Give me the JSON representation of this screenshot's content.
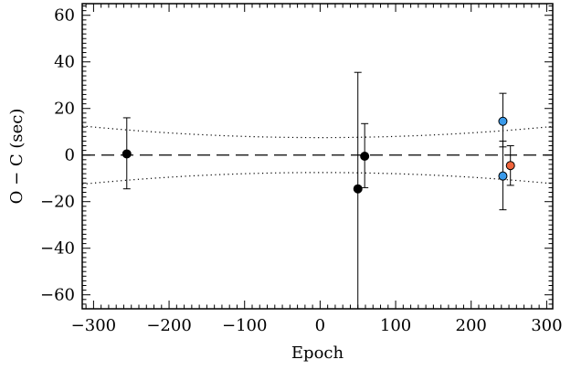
{
  "chart_data": {
    "type": "scatter",
    "xlabel": "Epoch",
    "ylabel": "O − C (sec)",
    "xlim": [
      -315,
      308
    ],
    "ylim": [
      -66,
      65
    ],
    "x_ticks": [
      -300,
      -200,
      -100,
      0,
      100,
      200,
      300
    ],
    "x_tick_labels": [
      "−300",
      "−200",
      "−100",
      "0",
      "100",
      "200",
      "300"
    ],
    "y_ticks": [
      -60,
      -40,
      -20,
      0,
      20,
      40,
      60
    ],
    "y_tick_labels": [
      "−60",
      "−40",
      "−20",
      "0",
      "20",
      "40",
      "60"
    ],
    "grid": false,
    "legend": "none",
    "reference_line": {
      "y": 0,
      "style": "dashed",
      "color": "#000000"
    },
    "envelope": {
      "style": "dotted",
      "color": "#000000",
      "center_x": 0,
      "upper_at_center": 7.5,
      "upper_at_edges": 12.5,
      "lower_at_center": -7.5,
      "lower_at_edges": -12.5
    },
    "series": [
      {
        "color": "#000000",
        "points": [
          {
            "x": -256,
            "y": 0.5,
            "yerr_low": -14.5,
            "yerr_high": 16.0
          },
          {
            "x": 50,
            "y": -14.5,
            "yerr_low": -66,
            "yerr_high": 35.5
          },
          {
            "x": 59,
            "y": -0.5,
            "yerr_low": -14.0,
            "yerr_high": 13.5
          }
        ]
      },
      {
        "color": "#3a9aea",
        "points": [
          {
            "x": 242,
            "y": 14.5,
            "yerr_low": 3.5,
            "yerr_high": 26.5
          },
          {
            "x": 242,
            "y": -9.0,
            "yerr_low": -23.5,
            "yerr_high": 6.0
          }
        ]
      },
      {
        "color": "#f0643c",
        "points": [
          {
            "x": 252,
            "y": -4.5,
            "yerr_low": -13.0,
            "yerr_high": 4.0
          }
        ]
      }
    ]
  }
}
